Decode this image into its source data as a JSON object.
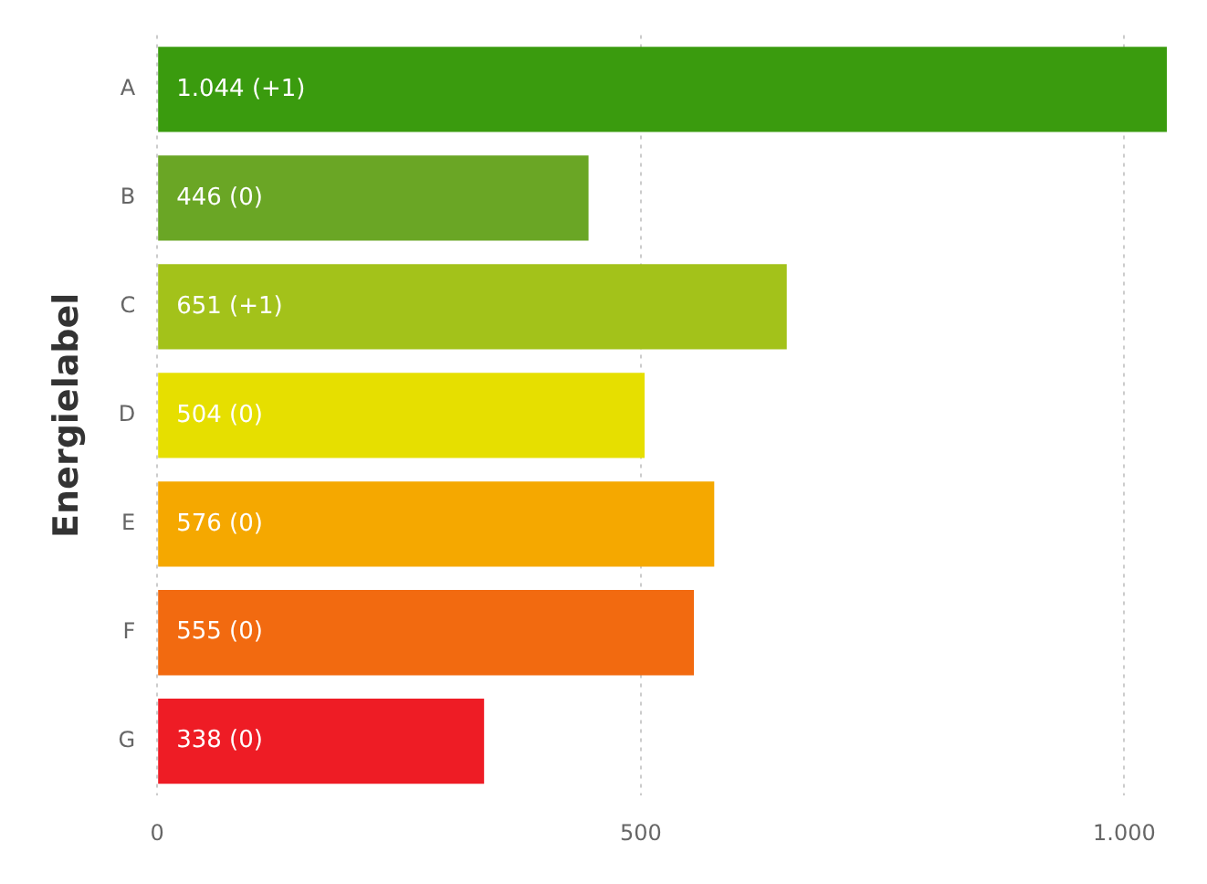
{
  "chart_data": {
    "type": "bar",
    "orientation": "horizontal",
    "ylabel": "Energielabel",
    "categories": [
      "A",
      "B",
      "C",
      "D",
      "E",
      "F",
      "G"
    ],
    "values": [
      1044,
      446,
      651,
      504,
      576,
      555,
      338
    ],
    "colors": [
      "#3a9b0e",
      "#6aa625",
      "#a3c21a",
      "#e6df00",
      "#f5a800",
      "#f26a10",
      "#ee1c25"
    ],
    "value_labels": [
      "1.044 (+1)",
      "446 (0)",
      "651 (+1)",
      "504 (0)",
      "576 (0)",
      "555 (0)",
      "338 (0)"
    ],
    "xlim": [
      0,
      1044
    ],
    "xticks": [
      0,
      500,
      {
        "value": 1000,
        "label": "1.000"
      }
    ],
    "grid": "x",
    "legend": false
  }
}
